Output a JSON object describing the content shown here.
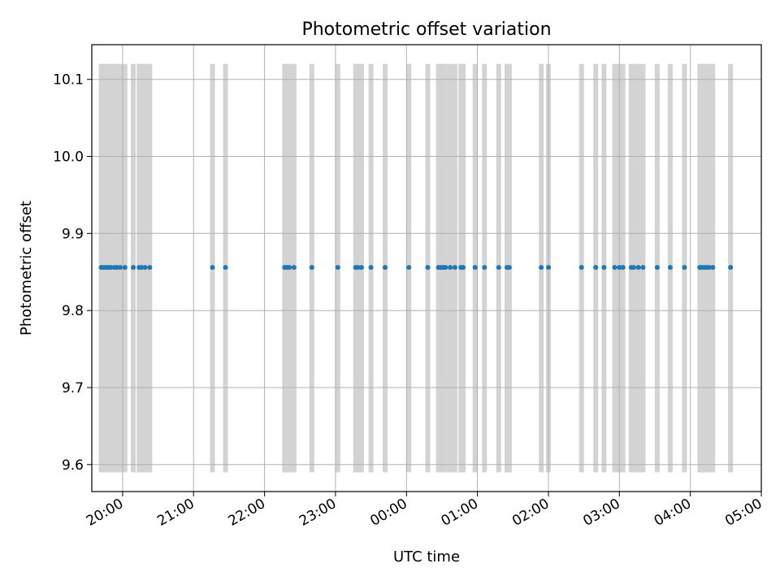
{
  "chart_data": {
    "type": "scatter",
    "title": "Photometric offset variation",
    "xlabel": "UTC time",
    "ylabel": "Photometric offset",
    "x_axis": {
      "kind": "time",
      "xlim": [
        "19:34",
        "05:00"
      ],
      "tick_labels": [
        "20:00",
        "21:00",
        "22:00",
        "23:00",
        "00:00",
        "01:00",
        "02:00",
        "03:00",
        "04:00",
        "05:00"
      ]
    },
    "y_axis": {
      "ylim": [
        9.565,
        10.145
      ],
      "ticks": [
        9.6,
        9.7,
        9.8,
        9.9,
        10.0,
        10.1
      ],
      "tick_labels": [
        "9.6",
        "9.7",
        "9.8",
        "9.9",
        "10.0",
        "10.1"
      ]
    },
    "grid": true,
    "point_color": "#1f77b4",
    "band_color": "#d3d3d3",
    "band_range": [
      9.59,
      10.12
    ],
    "series": [
      {
        "x": [
          "19:42",
          "19:44",
          "19:46",
          "19:48",
          "19:50",
          "19:53",
          "19:55",
          "19:58",
          "20:02",
          "20:09",
          "20:14",
          "20:16",
          "20:19",
          "20:23",
          "21:16",
          "21:27",
          "22:17",
          "22:19",
          "22:21",
          "22:25",
          "22:40",
          "23:02",
          "23:17",
          "23:19",
          "23:22",
          "23:30",
          "23:42",
          "00:02",
          "00:18",
          "00:27",
          "00:29",
          "00:31",
          "00:33",
          "00:37",
          "00:41",
          "00:46",
          "00:48",
          "00:58",
          "01:06",
          "01:18",
          "01:25",
          "01:27",
          "01:54",
          "02:00",
          "02:28",
          "02:40",
          "02:47",
          "02:56",
          "03:00",
          "03:03",
          "03:10",
          "03:12",
          "03:16",
          "03:20",
          "03:32",
          "03:43",
          "03:55",
          "04:08",
          "04:10",
          "04:12",
          "04:14",
          "04:16",
          "04:19",
          "04:34"
        ],
        "y": [
          9.856,
          9.856,
          9.856,
          9.856,
          9.856,
          9.856,
          9.856,
          9.856,
          9.856,
          9.856,
          9.856,
          9.856,
          9.856,
          9.856,
          9.856,
          9.856,
          9.856,
          9.856,
          9.856,
          9.856,
          9.856,
          9.856,
          9.856,
          9.856,
          9.856,
          9.856,
          9.856,
          9.856,
          9.856,
          9.856,
          9.856,
          9.856,
          9.856,
          9.856,
          9.856,
          9.856,
          9.856,
          9.856,
          9.856,
          9.856,
          9.856,
          9.856,
          9.856,
          9.856,
          9.856,
          9.856,
          9.856,
          9.856,
          9.856,
          9.856,
          9.856,
          9.856,
          9.856,
          9.856,
          9.856,
          9.856,
          9.856,
          9.856,
          9.856,
          9.856,
          9.856,
          9.856,
          9.856,
          9.856
        ]
      }
    ]
  }
}
